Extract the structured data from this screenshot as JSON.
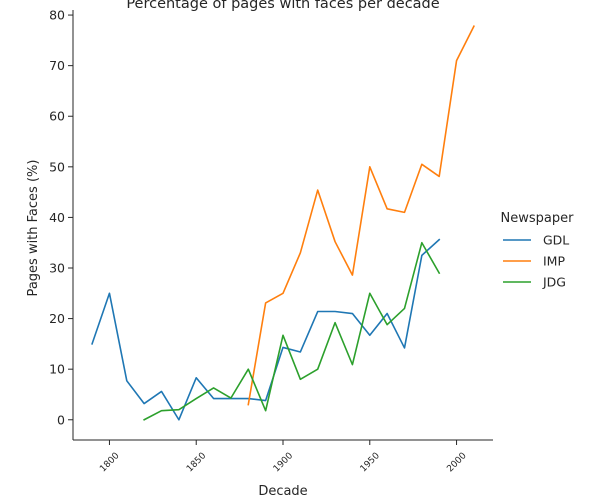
{
  "chart_data": {
    "type": "line",
    "title": "Percentage of pages with faces per decade",
    "xlabel": "Decade",
    "ylabel": "Pages with Faces (%)",
    "xlim": [
      1779,
      2021
    ],
    "ylim": [
      -4,
      81
    ],
    "xticks": [
      1800,
      1850,
      1900,
      1950,
      2000
    ],
    "yticks": [
      0,
      10,
      20,
      30,
      40,
      50,
      60,
      70,
      80
    ],
    "grid": false,
    "legend": {
      "title": "Newspaper",
      "placement": "right"
    },
    "series": [
      {
        "name": "GDL",
        "color": "#1f77b4",
        "x": [
          1790,
          1800,
          1810,
          1820,
          1830,
          1840,
          1850,
          1860,
          1870,
          1880,
          1890,
          1900,
          1910,
          1920,
          1930,
          1940,
          1950,
          1960,
          1970,
          1980,
          1990
        ],
        "values": [
          15,
          25,
          7.7,
          3.2,
          5.6,
          0,
          8.3,
          4.2,
          4.2,
          4.2,
          3.8,
          14.3,
          13.4,
          21.4,
          21.4,
          21,
          16.7,
          21,
          14.2,
          32.5,
          35.6
        ]
      },
      {
        "name": "IMP",
        "color": "#ff7f0e",
        "x": [
          1880,
          1890,
          1900,
          1910,
          1920,
          1930,
          1940,
          1950,
          1960,
          1970,
          1980,
          1990,
          2000,
          2010
        ],
        "values": [
          3,
          23.1,
          25,
          33,
          45.4,
          35.2,
          28.6,
          50,
          41.7,
          41,
          50.5,
          48.1,
          71,
          77.8
        ]
      },
      {
        "name": "JDG",
        "color": "#2ca02c",
        "x": [
          1820,
          1830,
          1840,
          1850,
          1860,
          1870,
          1880,
          1890,
          1900,
          1910,
          1920,
          1930,
          1940,
          1950,
          1960,
          1970,
          1980,
          1990
        ],
        "values": [
          0,
          1.8,
          2,
          4.2,
          6.3,
          4.3,
          10,
          1.8,
          16.7,
          8,
          10,
          19.2,
          10.9,
          25,
          18.8,
          22,
          35,
          29
        ]
      }
    ]
  }
}
